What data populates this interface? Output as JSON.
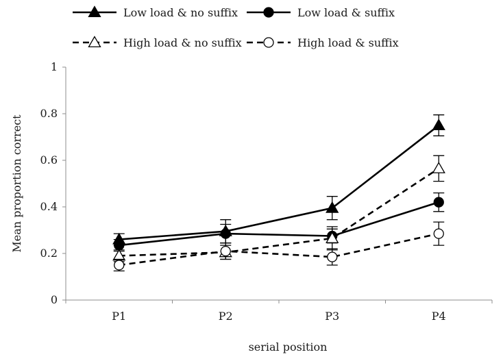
{
  "chart_data": {
    "type": "line",
    "title": "",
    "xlabel": "serial position",
    "ylabel": "Mean proportion correct",
    "categories": [
      "P1",
      "P2",
      "P3",
      "P4"
    ],
    "ylim": [
      0,
      1
    ],
    "yticks": [
      0,
      0.2,
      0.4,
      0.6,
      0.8,
      1
    ],
    "ytick_labels": [
      "0",
      "0.2",
      "0.4",
      "0.6",
      "0.8",
      "1"
    ],
    "grid": false,
    "legend_position": "top",
    "series": [
      {
        "name": "Low load & no suffix",
        "values": [
          0.26,
          0.295,
          0.395,
          0.75
        ],
        "errors": [
          0.025,
          0.05,
          0.05,
          0.045
        ],
        "marker": "filled-triangle",
        "line_style": "solid",
        "color": "#000000"
      },
      {
        "name": "Low load & suffix",
        "values": [
          0.235,
          0.285,
          0.275,
          0.42
        ],
        "errors": [
          0.025,
          0.04,
          0.03,
          0.04
        ],
        "marker": "filled-circle",
        "line_style": "solid",
        "color": "#000000"
      },
      {
        "name": "High load & no suffix",
        "values": [
          0.19,
          0.205,
          0.265,
          0.565
        ],
        "errors": [
          0.025,
          0.03,
          0.05,
          0.055
        ],
        "marker": "open-triangle",
        "line_style": "dashed",
        "color": "#000000"
      },
      {
        "name": "High load & suffix",
        "values": [
          0.15,
          0.21,
          0.185,
          0.285
        ],
        "errors": [
          0.025,
          0.035,
          0.035,
          0.05
        ],
        "marker": "open-circle",
        "line_style": "dashed",
        "color": "#000000"
      }
    ]
  }
}
